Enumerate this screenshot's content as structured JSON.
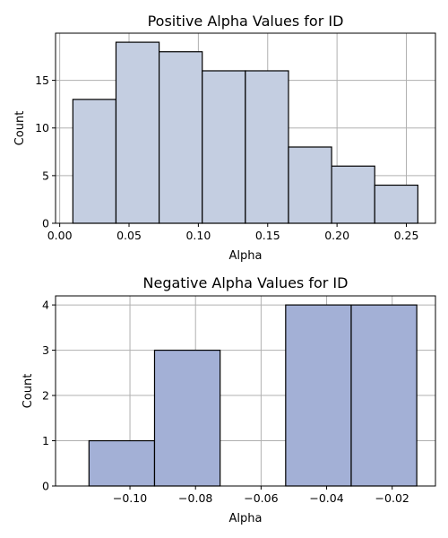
{
  "chart_data": [
    {
      "type": "bar",
      "title": "Positive Alpha Values for ID",
      "xlabel": "Alpha",
      "ylabel": "Count",
      "bar_color": "#c4cee1",
      "bins": [
        {
          "start": 0.0095,
          "end": 0.0406,
          "value": 13
        },
        {
          "start": 0.0406,
          "end": 0.0717,
          "value": 19
        },
        {
          "start": 0.0717,
          "end": 0.1028,
          "value": 18
        },
        {
          "start": 0.1028,
          "end": 0.1339,
          "value": 16
        },
        {
          "start": 0.1339,
          "end": 0.165,
          "value": 16
        },
        {
          "start": 0.165,
          "end": 0.1961,
          "value": 8
        },
        {
          "start": 0.1961,
          "end": 0.2272,
          "value": 6
        },
        {
          "start": 0.2272,
          "end": 0.2583,
          "value": 4
        }
      ],
      "xlim": [
        -0.003,
        0.271
      ],
      "ylim": [
        0,
        19.95
      ],
      "xticks": [
        0.0,
        0.05,
        0.1,
        0.15,
        0.2,
        0.25
      ],
      "xtick_labels": [
        "0.00",
        "0.05",
        "0.10",
        "0.15",
        "0.20",
        "0.25"
      ],
      "yticks": [
        0,
        5,
        10,
        15
      ],
      "ytick_labels": [
        "0",
        "5",
        "10",
        "15"
      ],
      "grid": true
    },
    {
      "type": "bar",
      "title": "Negative Alpha Values for ID",
      "xlabel": "Alpha",
      "ylabel": "Count",
      "bar_color": "#a3b0d6",
      "bins": [
        {
          "start": -0.1125,
          "end": -0.0925,
          "value": 1
        },
        {
          "start": -0.0925,
          "end": -0.0725,
          "value": 3
        },
        {
          "start": -0.0725,
          "end": -0.0525,
          "value": 0
        },
        {
          "start": -0.0525,
          "end": -0.0325,
          "value": 4
        },
        {
          "start": -0.0325,
          "end": -0.0125,
          "value": 4
        }
      ],
      "xlim": [
        -0.1227,
        -0.0068
      ],
      "ylim": [
        0,
        4.2
      ],
      "xticks": [
        -0.1,
        -0.08,
        -0.06,
        -0.04,
        -0.02
      ],
      "xtick_labels": [
        "−0.10",
        "−0.08",
        "−0.06",
        "−0.04",
        "−0.02"
      ],
      "yticks": [
        0,
        1,
        2,
        3,
        4
      ],
      "ytick_labels": [
        "0",
        "1",
        "2",
        "3",
        "4"
      ],
      "grid": true
    }
  ]
}
